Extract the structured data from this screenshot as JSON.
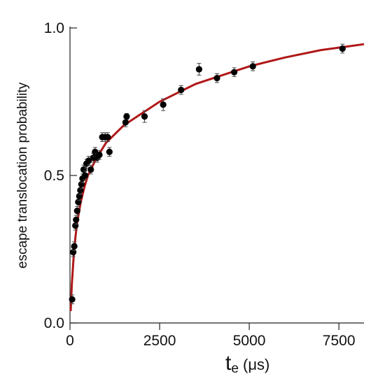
{
  "chart_data": {
    "type": "scatter",
    "title": "",
    "xlabel_main": "t",
    "xlabel_sub": "e",
    "xlabel_unit": " (μs)",
    "ylabel": "escape translocation probability",
    "xlim": [
      0,
      8200
    ],
    "ylim": [
      0,
      1.0
    ],
    "x_ticks": [
      0,
      2500,
      5000,
      7500
    ],
    "x_tick_labels": [
      "0",
      "2500",
      "5000",
      "7500"
    ],
    "y_ticks": [
      0,
      0.5,
      1.0
    ],
    "y_tick_labels": [
      "0.0",
      "0.5",
      "1.0"
    ],
    "grid": false,
    "legend": "none",
    "colors": {
      "points": "#000000",
      "fit_line": "#b01818",
      "axis": "#222222"
    },
    "series": [
      {
        "kind": "points_with_error_bars",
        "points": [
          {
            "x": 60,
            "y": 0.08,
            "err": 0.015
          },
          {
            "x": 90,
            "y": 0.24,
            "err": 0.015
          },
          {
            "x": 120,
            "y": 0.26,
            "err": 0.015
          },
          {
            "x": 150,
            "y": 0.33,
            "err": 0.015
          },
          {
            "x": 170,
            "y": 0.35,
            "err": 0.015
          },
          {
            "x": 200,
            "y": 0.38,
            "err": 0.015
          },
          {
            "x": 230,
            "y": 0.41,
            "err": 0.015
          },
          {
            "x": 260,
            "y": 0.43,
            "err": 0.015
          },
          {
            "x": 290,
            "y": 0.45,
            "err": 0.015
          },
          {
            "x": 320,
            "y": 0.47,
            "err": 0.015
          },
          {
            "x": 350,
            "y": 0.49,
            "err": 0.015
          },
          {
            "x": 380,
            "y": 0.52,
            "err": 0.015
          },
          {
            "x": 420,
            "y": 0.5,
            "err": 0.015
          },
          {
            "x": 460,
            "y": 0.54,
            "err": 0.015
          },
          {
            "x": 520,
            "y": 0.55,
            "err": 0.015
          },
          {
            "x": 580,
            "y": 0.52,
            "err": 0.015
          },
          {
            "x": 650,
            "y": 0.56,
            "err": 0.015
          },
          {
            "x": 700,
            "y": 0.58,
            "err": 0.015
          },
          {
            "x": 760,
            "y": 0.56,
            "err": 0.015
          },
          {
            "x": 820,
            "y": 0.57,
            "err": 0.015
          },
          {
            "x": 900,
            "y": 0.63,
            "err": 0.015
          },
          {
            "x": 980,
            "y": 0.63,
            "err": 0.015
          },
          {
            "x": 1050,
            "y": 0.63,
            "err": 0.015
          },
          {
            "x": 1100,
            "y": 0.58,
            "err": 0.015
          },
          {
            "x": 1550,
            "y": 0.68,
            "err": 0.015
          },
          {
            "x": 1580,
            "y": 0.7,
            "err": 0.01
          },
          {
            "x": 2080,
            "y": 0.7,
            "err": 0.02
          },
          {
            "x": 2600,
            "y": 0.74,
            "err": 0.02
          },
          {
            "x": 3100,
            "y": 0.79,
            "err": 0.015
          },
          {
            "x": 3600,
            "y": 0.86,
            "err": 0.02
          },
          {
            "x": 4100,
            "y": 0.83,
            "err": 0.015
          },
          {
            "x": 4580,
            "y": 0.85,
            "err": 0.015
          },
          {
            "x": 5100,
            "y": 0.87,
            "err": 0.015
          },
          {
            "x": 7600,
            "y": 0.93,
            "err": 0.015
          }
        ]
      },
      {
        "kind": "fit_curve",
        "points": [
          {
            "x": 20,
            "y": 0.04
          },
          {
            "x": 50,
            "y": 0.13
          },
          {
            "x": 100,
            "y": 0.22
          },
          {
            "x": 150,
            "y": 0.29
          },
          {
            "x": 200,
            "y": 0.34
          },
          {
            "x": 300,
            "y": 0.41
          },
          {
            "x": 400,
            "y": 0.46
          },
          {
            "x": 500,
            "y": 0.5
          },
          {
            "x": 700,
            "y": 0.55
          },
          {
            "x": 1000,
            "y": 0.61
          },
          {
            "x": 1500,
            "y": 0.67
          },
          {
            "x": 2000,
            "y": 0.71
          },
          {
            "x": 2500,
            "y": 0.75
          },
          {
            "x": 3000,
            "y": 0.78
          },
          {
            "x": 3500,
            "y": 0.81
          },
          {
            "x": 4000,
            "y": 0.83
          },
          {
            "x": 4500,
            "y": 0.85
          },
          {
            "x": 5000,
            "y": 0.87
          },
          {
            "x": 6000,
            "y": 0.9
          },
          {
            "x": 7000,
            "y": 0.925
          },
          {
            "x": 8200,
            "y": 0.945
          }
        ]
      }
    ]
  }
}
